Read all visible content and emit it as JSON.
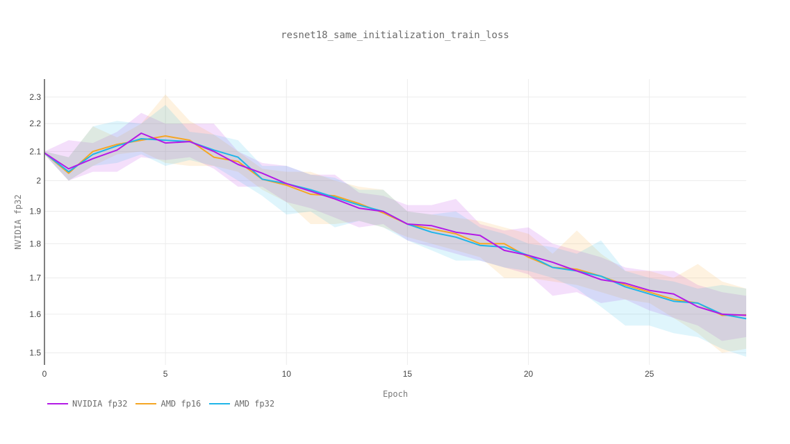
{
  "chart_data": {
    "type": "line",
    "title": "resnet18_same_initialization_train_loss",
    "xlabel": "Epoch",
    "ylabel": "NVIDIA fp32",
    "xlim": [
      0,
      29
    ],
    "ylim": [
      1.47,
      2.37
    ],
    "y_scale": "log",
    "grid": true,
    "legend_position": "bottom-left",
    "x_ticks": [
      0,
      5,
      10,
      15,
      20,
      25
    ],
    "y_ticks": [
      1.5,
      1.6,
      1.7,
      1.8,
      1.9,
      2,
      2.1,
      2.2,
      2.3
    ],
    "x_tick_labels": [
      "0",
      "5",
      "10",
      "15",
      "20",
      "25"
    ],
    "y_tick_labels": [
      "1.5",
      "1.6",
      "1.7",
      "1.8",
      "1.9",
      "2",
      "2.1",
      "2.2",
      "2.3"
    ],
    "x": [
      0,
      1,
      2,
      3,
      4,
      5,
      6,
      7,
      8,
      9,
      10,
      11,
      12,
      13,
      14,
      15,
      16,
      17,
      18,
      19,
      20,
      21,
      22,
      23,
      24,
      25,
      26,
      27,
      28,
      29
    ],
    "series": [
      {
        "name": "NVIDIA fp32",
        "color": "#b31ae6",
        "values": [
          2.095,
          2.04,
          2.075,
          2.105,
          2.165,
          2.13,
          2.135,
          2.1,
          2.055,
          2.025,
          1.99,
          1.965,
          1.94,
          1.91,
          1.9,
          1.86,
          1.855,
          1.835,
          1.825,
          1.78,
          1.765,
          1.745,
          1.72,
          1.695,
          1.685,
          1.665,
          1.655,
          1.62,
          1.6,
          1.597
        ],
        "band_upper": [
          2.1,
          2.14,
          2.13,
          2.17,
          2.24,
          2.2,
          2.2,
          2.2,
          2.1,
          2.06,
          2.05,
          2.02,
          2.02,
          1.96,
          1.95,
          1.92,
          1.92,
          1.94,
          1.86,
          1.84,
          1.85,
          1.8,
          1.78,
          1.76,
          1.73,
          1.72,
          1.72,
          1.68,
          1.66,
          1.65
        ],
        "band_lower": [
          2.09,
          2.0,
          2.03,
          2.03,
          2.08,
          2.07,
          2.08,
          2.04,
          1.98,
          1.98,
          1.93,
          1.91,
          1.88,
          1.85,
          1.86,
          1.81,
          1.79,
          1.77,
          1.75,
          1.73,
          1.71,
          1.65,
          1.66,
          1.63,
          1.64,
          1.61,
          1.59,
          1.57,
          1.53,
          1.54
        ]
      },
      {
        "name": "AMD fp16",
        "color": "#f5a623",
        "values": [
          2.095,
          2.025,
          2.1,
          2.125,
          2.14,
          2.155,
          2.14,
          2.08,
          2.065,
          2.005,
          1.985,
          1.955,
          1.95,
          1.925,
          1.895,
          1.86,
          1.845,
          1.83,
          1.8,
          1.8,
          1.76,
          1.73,
          1.725,
          1.705,
          1.68,
          1.66,
          1.64,
          1.63,
          1.597,
          1.598
        ],
        "band_upper": [
          2.1,
          2.08,
          2.19,
          2.15,
          2.2,
          2.31,
          2.21,
          2.16,
          2.1,
          2.04,
          2.03,
          2.03,
          2.0,
          1.98,
          1.97,
          1.9,
          1.89,
          1.88,
          1.87,
          1.85,
          1.83,
          1.77,
          1.84,
          1.77,
          1.72,
          1.72,
          1.7,
          1.74,
          1.69,
          1.67
        ],
        "band_lower": [
          2.09,
          2.0,
          2.05,
          2.09,
          2.1,
          2.06,
          2.05,
          2.05,
          2.03,
          1.97,
          1.93,
          1.86,
          1.86,
          1.87,
          1.85,
          1.82,
          1.8,
          1.78,
          1.76,
          1.7,
          1.7,
          1.69,
          1.68,
          1.66,
          1.64,
          1.63,
          1.59,
          1.55,
          1.5,
          1.51
        ]
      },
      {
        "name": "AMD fp32",
        "color": "#1fb5e8",
        "values": [
          2.095,
          2.03,
          2.09,
          2.12,
          2.145,
          2.14,
          2.135,
          2.105,
          2.08,
          2.005,
          1.99,
          1.97,
          1.945,
          1.92,
          1.9,
          1.86,
          1.835,
          1.82,
          1.795,
          1.79,
          1.765,
          1.73,
          1.72,
          1.705,
          1.675,
          1.655,
          1.635,
          1.63,
          1.6,
          1.588
        ],
        "band_upper": [
          2.1,
          2.08,
          2.19,
          2.21,
          2.2,
          2.27,
          2.17,
          2.16,
          2.14,
          2.05,
          2.05,
          2.02,
          2.01,
          1.97,
          1.97,
          1.9,
          1.89,
          1.9,
          1.85,
          1.83,
          1.8,
          1.79,
          1.77,
          1.81,
          1.72,
          1.7,
          1.69,
          1.67,
          1.68,
          1.67
        ],
        "band_lower": [
          2.09,
          2.0,
          2.05,
          2.06,
          2.09,
          2.05,
          2.07,
          2.05,
          2.0,
          1.95,
          1.89,
          1.9,
          1.85,
          1.87,
          1.85,
          1.81,
          1.78,
          1.75,
          1.75,
          1.73,
          1.72,
          1.7,
          1.67,
          1.62,
          1.57,
          1.57,
          1.55,
          1.54,
          1.51,
          1.49
        ]
      }
    ]
  }
}
